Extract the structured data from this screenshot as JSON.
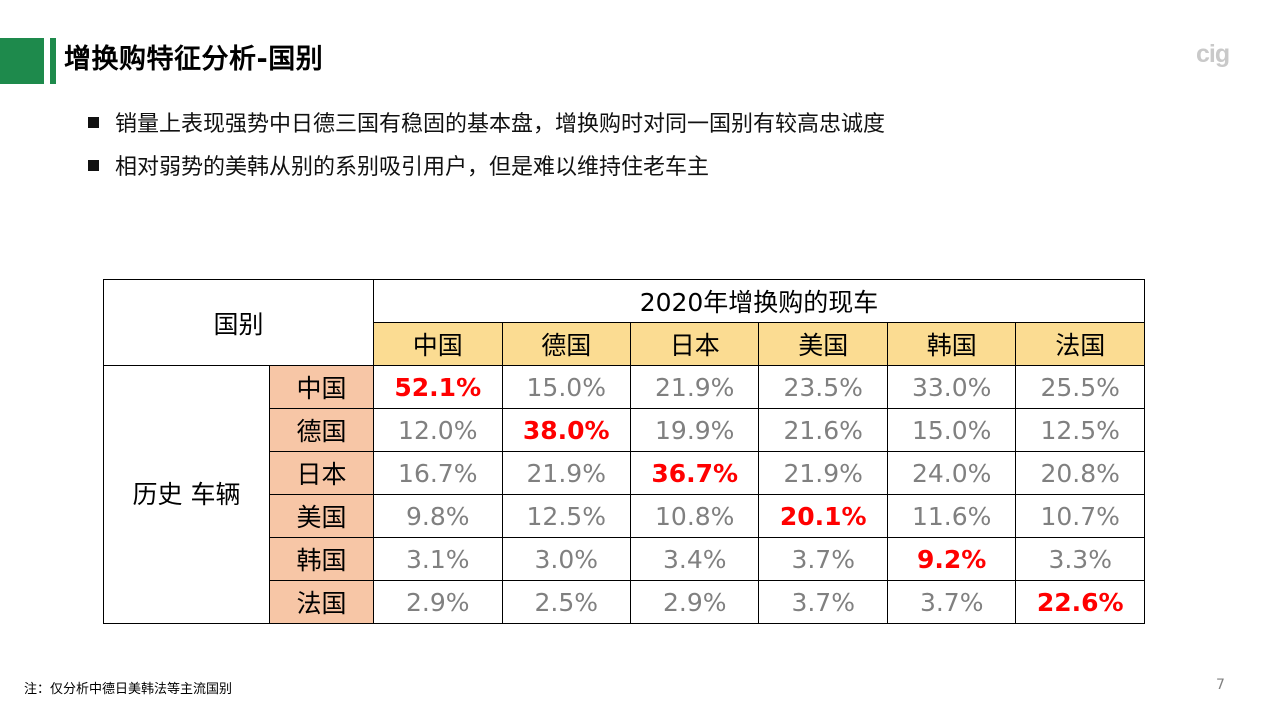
{
  "title": "增换购特征分析-国别",
  "logo_text": "cig",
  "bullets": [
    "销量上表现强势中日德三国有稳固的基本盘，增换购时对同一国别有较高忠诚度",
    "相对弱势的美韩从别的系别吸引用户，但是难以维持住老车主"
  ],
  "table": {
    "corner_label": "国别",
    "top_header": "2020年增换购的现车",
    "side_header": "历史\n车辆",
    "columns": [
      "中国",
      "德国",
      "日本",
      "美国",
      "韩国",
      "法国"
    ],
    "rows": [
      {
        "label": "中国",
        "values": [
          "52.1%",
          "15.0%",
          "21.9%",
          "23.5%",
          "33.0%",
          "25.5%"
        ]
      },
      {
        "label": "德国",
        "values": [
          "12.0%",
          "38.0%",
          "19.9%",
          "21.6%",
          "15.0%",
          "12.5%"
        ]
      },
      {
        "label": "日本",
        "values": [
          "16.7%",
          "21.9%",
          "36.7%",
          "21.9%",
          "24.0%",
          "20.8%"
        ]
      },
      {
        "label": "美国",
        "values": [
          "9.8%",
          "12.5%",
          "10.8%",
          "20.1%",
          "11.6%",
          "10.7%"
        ]
      },
      {
        "label": "韩国",
        "values": [
          "3.1%",
          "3.0%",
          "3.4%",
          "3.7%",
          "9.2%",
          "3.3%"
        ]
      },
      {
        "label": "法国",
        "values": [
          "2.9%",
          "2.5%",
          "2.9%",
          "3.7%",
          "3.7%",
          "22.6%"
        ]
      }
    ]
  },
  "colors": {
    "accent_green": "#1e8a4c",
    "column_header_bg": "#fbdc92",
    "row_header_bg": "#f7c6a6",
    "highlight_text": "#ff0000",
    "value_text": "#808080"
  },
  "note": "注：仅分析中德日美韩法等主流国别",
  "page_number": "7"
}
